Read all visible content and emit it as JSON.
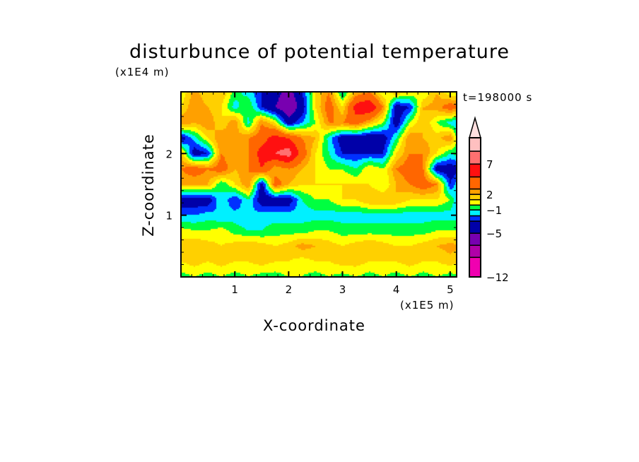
{
  "chart_data": {
    "type": "heatmap",
    "title": "disturbunce of potential temperature",
    "xlabel": "X-coordinate",
    "ylabel": "Z-coordinate",
    "x_unit": "(x1E5 m)",
    "y_unit": "(x1E4 m)",
    "annotation": "t=198000 s",
    "xlim": [
      0,
      5.12
    ],
    "ylim": [
      0,
      3.0
    ],
    "xticks": [
      1,
      2,
      3,
      4,
      5
    ],
    "xtick_labels": [
      "1",
      "2",
      "3",
      "4",
      "5"
    ],
    "yticks": [
      1,
      2
    ],
    "ytick_labels": [
      "1",
      "2"
    ],
    "colorbar": {
      "levels": [
        -12,
        -9,
        -7,
        -5,
        -3,
        -2,
        -1,
        0,
        1,
        2,
        3,
        5,
        7,
        9,
        11
      ],
      "colors": [
        "#f000b0",
        "#b000a8",
        "#7800b0",
        "#0000a8",
        "#0030ff",
        "#00f0ff",
        "#00ff40",
        "#ffff00",
        "#ffd000",
        "#ffa000",
        "#ff6600",
        "#ff1010",
        "#ff7070",
        "#ffc0c0",
        "#ffe0e0"
      ],
      "labels": [
        {
          "value": 7,
          "text": "7"
        },
        {
          "value": 2,
          "text": "2"
        },
        {
          "value": -1,
          "text": "−1"
        },
        {
          "value": -5,
          "text": "−5"
        },
        {
          "value": -12,
          "text": "−12"
        }
      ],
      "extend": "max"
    },
    "grid": {
      "x": [
        0,
        0.25,
        0.5,
        0.75,
        1,
        1.25,
        1.5,
        1.75,
        2,
        2.25,
        2.5,
        2.75,
        3,
        3.25,
        3.5,
        3.75,
        4,
        4.25,
        4.5,
        4.75,
        5,
        5.25
      ],
      "z": [
        3.0,
        2.75,
        2.5,
        2.25,
        2.0,
        1.75,
        1.5,
        1.25,
        1.0,
        0.75,
        0.5,
        0.25,
        0
      ],
      "values": [
        [
          0,
          2.5,
          1,
          2,
          -0.5,
          -1.5,
          -3,
          -4,
          -6,
          -3,
          1,
          3,
          -1.5,
          2,
          3,
          0,
          2,
          1,
          0,
          2,
          0,
          0
        ],
        [
          1,
          3,
          2,
          1,
          -1.5,
          0,
          -3,
          -5,
          -7,
          -4,
          1,
          4,
          1,
          6,
          7,
          3,
          -4,
          -3,
          2,
          2.5,
          4,
          3
        ],
        [
          3,
          2,
          3,
          1,
          3,
          -1.5,
          3,
          1,
          -4,
          -2,
          0,
          3,
          3,
          4,
          2,
          0,
          -4,
          0,
          2,
          0,
          -1.5,
          -3
        ],
        [
          -4,
          -1.5,
          1,
          3,
          2,
          3,
          4,
          6,
          5,
          3,
          2,
          -1.5,
          -4,
          -4,
          -4.5,
          -4,
          -1,
          3,
          2,
          1.5,
          3,
          -3
        ],
        [
          2,
          -4,
          -3,
          3,
          2,
          3,
          6,
          7,
          8,
          4,
          1,
          -1,
          -3,
          -3,
          -3,
          -3,
          1,
          3,
          3,
          1,
          -1,
          0
        ],
        [
          3,
          4,
          3,
          4,
          2,
          3,
          5,
          2,
          3,
          2,
          1,
          0,
          0,
          -1,
          1,
          0,
          3,
          4,
          3,
          -4,
          -4,
          -3
        ],
        [
          2,
          2,
          2,
          -1,
          1,
          3,
          -4,
          4,
          2,
          1,
          1,
          1,
          1,
          1,
          1,
          0,
          2,
          3,
          4,
          3,
          -3,
          0
        ],
        [
          -4,
          -4,
          -4,
          -1,
          -3,
          -1,
          -4,
          -4,
          -4,
          -1,
          0,
          0,
          1,
          1,
          2,
          2,
          2,
          1,
          1,
          1,
          0,
          -4
        ],
        [
          -2,
          -2,
          -1.5,
          -2,
          -1.5,
          -2,
          -1.5,
          -1.5,
          -1.5,
          -1.5,
          -1.5,
          -1.5,
          -1.5,
          -1.5,
          -1.5,
          -1.5,
          -1.5,
          -1.5,
          -1.5,
          -1.5,
          -1.5,
          -1.5
        ],
        [
          0.5,
          0,
          0,
          0.5,
          -0.5,
          -1,
          -1,
          -0.5,
          -0.5,
          -0.5,
          0,
          0,
          -0.5,
          -0.5,
          -0.5,
          -0.5,
          -0.5,
          -0.5,
          -0.5,
          0,
          0,
          0
        ],
        [
          1.5,
          2,
          1.5,
          1,
          1.5,
          2,
          1.5,
          1,
          1.5,
          2.5,
          2,
          1.5,
          1,
          1.5,
          2,
          1.5,
          1,
          1,
          1.5,
          2,
          2.5,
          2
        ],
        [
          1,
          1.5,
          1,
          1.5,
          1,
          1,
          1.5,
          1,
          1,
          0.5,
          1,
          1,
          1.5,
          1.5,
          1,
          1,
          1,
          1.5,
          1,
          1,
          1.5,
          1
        ],
        [
          -0.5,
          0,
          -0.5,
          0,
          -0.5,
          0,
          -0.5,
          -0.5,
          0,
          0,
          -0.5,
          0,
          -0.5,
          0,
          -0.5,
          0,
          -0.5,
          0,
          -0.5,
          0,
          -0.5,
          0
        ]
      ]
    }
  }
}
